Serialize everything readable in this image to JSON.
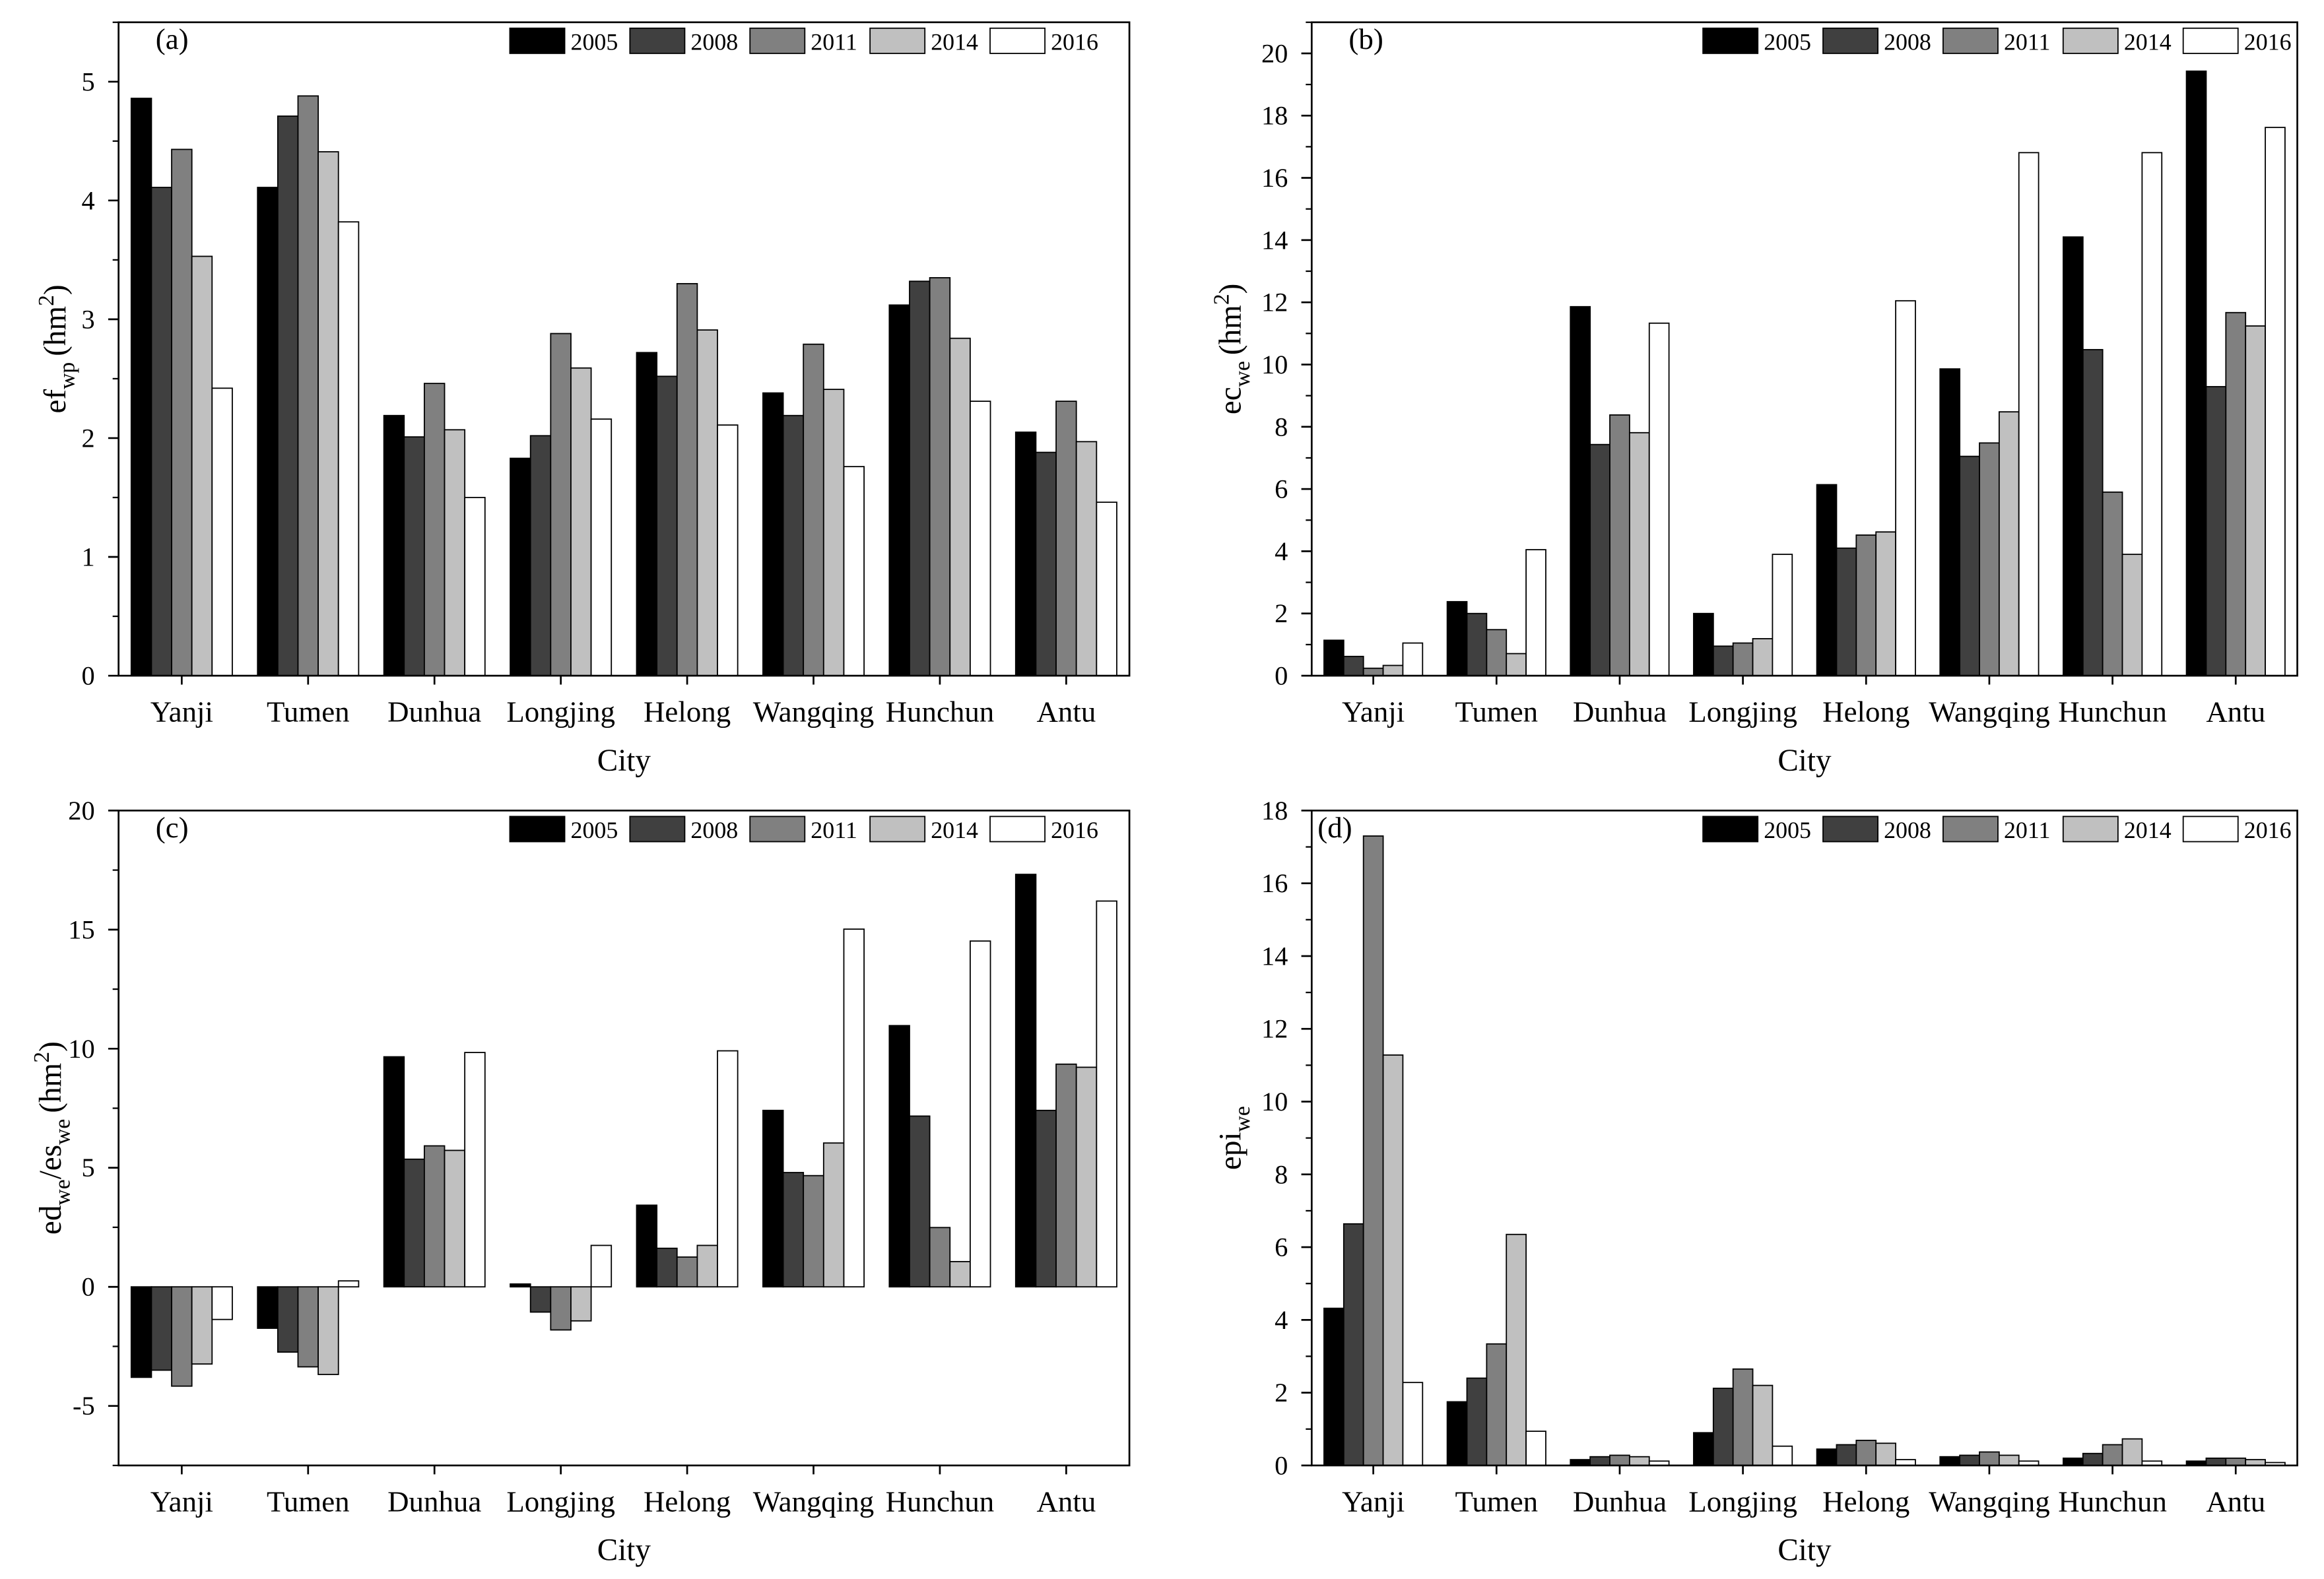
{
  "chart_data": [
    {
      "type": "bar",
      "title": "(a)",
      "categories": [
        "Yanji",
        "Tumen",
        "Dunhua",
        "Longjing",
        "Helong",
        "Wangqing",
        "Hunchun",
        "Antu"
      ],
      "series": [
        {
          "name": "2005",
          "color": "#000000",
          "values": [
            4.86,
            4.11,
            2.19,
            1.83,
            2.72,
            2.38,
            3.12,
            2.05
          ]
        },
        {
          "name": "2008",
          "color": "#404040",
          "values": [
            4.11,
            4.71,
            2.01,
            2.02,
            2.52,
            2.19,
            3.32,
            1.88
          ]
        },
        {
          "name": "2011",
          "color": "#808080",
          "values": [
            4.43,
            4.88,
            2.46,
            2.88,
            3.3,
            2.79,
            3.35,
            2.31
          ]
        },
        {
          "name": "2014",
          "color": "#c0c0c0",
          "values": [
            3.53,
            4.41,
            2.07,
            2.59,
            2.91,
            2.41,
            2.84,
            1.97
          ]
        },
        {
          "name": "2016",
          "color": "#ffffff",
          "values": [
            2.42,
            3.82,
            1.5,
            2.16,
            2.11,
            1.76,
            2.31,
            1.46
          ]
        }
      ],
      "xlabel": "City",
      "ylabel": [
        {
          "text": "ef"
        },
        {
          "sub": "wp"
        },
        {
          "text": "(hm"
        },
        {
          "sup": "2"
        },
        {
          "text": ")"
        }
      ],
      "ylim": [
        0,
        5.5
      ],
      "yticks": [
        0,
        1,
        2,
        3,
        4,
        5
      ]
    },
    {
      "type": "bar",
      "title": "(b)",
      "categories": [
        "Yanji",
        "Tumen",
        "Dunhua",
        "Longjing",
        "Helong",
        "Wangqing",
        "Hunchun",
        "Antu"
      ],
      "series": [
        {
          "name": "2005",
          "color": "#000000",
          "values": [
            1.14,
            2.38,
            11.86,
            2.0,
            6.14,
            9.86,
            14.1,
            19.43
          ]
        },
        {
          "name": "2008",
          "color": "#404040",
          "values": [
            0.62,
            2.0,
            7.43,
            0.95,
            4.1,
            7.05,
            10.48,
            9.29
          ]
        },
        {
          "name": "2011",
          "color": "#808080",
          "values": [
            0.24,
            1.48,
            8.38,
            1.05,
            4.52,
            7.48,
            5.9,
            11.67
          ]
        },
        {
          "name": "2014",
          "color": "#c0c0c0",
          "values": [
            0.33,
            0.71,
            7.81,
            1.19,
            4.62,
            8.48,
            3.9,
            11.24
          ]
        },
        {
          "name": "2016",
          "color": "#ffffff",
          "values": [
            1.05,
            4.05,
            11.33,
            3.9,
            12.05,
            16.81,
            16.81,
            17.62
          ]
        }
      ],
      "xlabel": "City",
      "ylabel": [
        {
          "text": "ec"
        },
        {
          "sub": "we"
        },
        {
          "text": "(hm"
        },
        {
          "sup": "2"
        },
        {
          "text": ")"
        }
      ],
      "ylim": [
        0,
        21
      ],
      "yticks": [
        0,
        2,
        4,
        6,
        8,
        10,
        12,
        14,
        16,
        18,
        20
      ]
    },
    {
      "type": "bar",
      "title": "(c)",
      "categories": [
        "Yanji",
        "Tumen",
        "Dunhua",
        "Longjing",
        "Helong",
        "Wangqing",
        "Hunchun",
        "Antu"
      ],
      "series": [
        {
          "name": "2005",
          "color": "#000000",
          "values": [
            -3.8,
            -1.74,
            9.66,
            0.12,
            3.43,
            7.41,
            10.97,
            17.32
          ]
        },
        {
          "name": "2008",
          "color": "#404040",
          "values": [
            -3.5,
            -2.74,
            5.36,
            -1.06,
            1.62,
            4.8,
            7.17,
            7.41
          ]
        },
        {
          "name": "2011",
          "color": "#808080",
          "values": [
            -4.17,
            -3.36,
            5.92,
            -1.81,
            1.25,
            4.67,
            2.49,
            9.35
          ]
        },
        {
          "name": "2014",
          "color": "#c0c0c0",
          "values": [
            -3.24,
            -3.68,
            5.73,
            -1.43,
            1.74,
            6.04,
            1.06,
            9.22
          ]
        },
        {
          "name": "2016",
          "color": "#ffffff",
          "values": [
            -1.37,
            0.25,
            9.84,
            1.74,
            9.91,
            15.02,
            14.52,
            16.2
          ]
        }
      ],
      "xlabel": "City",
      "ylabel": [
        {
          "text": "ed"
        },
        {
          "sub": "we"
        },
        {
          "text": "/es"
        },
        {
          "sub": "we"
        },
        {
          "text": "(hm"
        },
        {
          "sup": "2"
        },
        {
          "text": ")"
        }
      ],
      "ylim": [
        -7.5,
        20
      ],
      "yticks": [
        -5,
        0,
        5,
        10,
        15,
        20
      ]
    },
    {
      "type": "bar",
      "title": "(d)",
      "categories": [
        "Yanji",
        "Tumen",
        "Dunhua",
        "Longjing",
        "Helong",
        "Wangqing",
        "Hunchun",
        "Antu"
      ],
      "series": [
        {
          "name": "2005",
          "color": "#000000",
          "values": [
            4.32,
            1.75,
            0.16,
            0.9,
            0.45,
            0.24,
            0.2,
            0.12
          ]
        },
        {
          "name": "2008",
          "color": "#404040",
          "values": [
            6.64,
            2.4,
            0.24,
            2.12,
            0.57,
            0.28,
            0.33,
            0.2
          ]
        },
        {
          "name": "2011",
          "color": "#808080",
          "values": [
            17.3,
            3.34,
            0.28,
            2.65,
            0.69,
            0.37,
            0.57,
            0.2
          ]
        },
        {
          "name": "2014",
          "color": "#c0c0c0",
          "values": [
            11.28,
            6.35,
            0.24,
            2.2,
            0.61,
            0.28,
            0.73,
            0.16
          ]
        },
        {
          "name": "2016",
          "color": "#ffffff",
          "values": [
            2.28,
            0.94,
            0.12,
            0.53,
            0.16,
            0.12,
            0.12,
            0.08
          ]
        }
      ],
      "xlabel": "City",
      "ylabel": [
        {
          "text": "epi"
        },
        {
          "sub": "we"
        }
      ],
      "ylim": [
        0,
        18
      ],
      "yticks": [
        0,
        2,
        4,
        6,
        8,
        10,
        12,
        14,
        16,
        18
      ]
    }
  ]
}
